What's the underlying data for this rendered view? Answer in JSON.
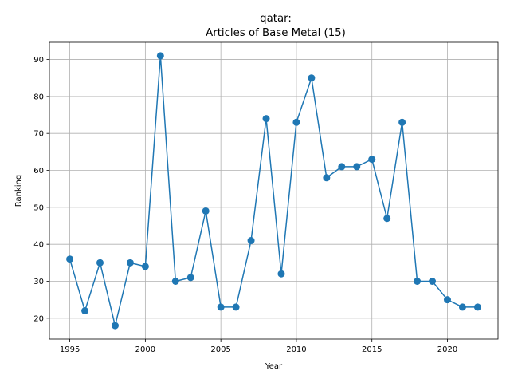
{
  "chart_data": {
    "type": "line",
    "title_line1": "qatar:",
    "title_line2": "Articles of Base Metal (15)",
    "xlabel": "Year",
    "ylabel": "Ranking",
    "xlim": [
      1993.65,
      2023.35
    ],
    "ylim": [
      14.35,
      94.65
    ],
    "xticks": [
      1995,
      2000,
      2005,
      2010,
      2015,
      2020
    ],
    "yticks": [
      20,
      30,
      40,
      50,
      60,
      70,
      80,
      90
    ],
    "grid": true,
    "color": "#1f77b4",
    "series": [
      {
        "x": [
          1995,
          1996,
          1997,
          1998,
          1999,
          2000,
          2001,
          2002,
          2003,
          2004,
          2005,
          2006,
          2007,
          2008,
          2009,
          2010,
          2011,
          2012,
          2013,
          2014,
          2015,
          2016,
          2017,
          2018,
          2019,
          2020,
          2021,
          2022
        ],
        "y": [
          36,
          22,
          35,
          18,
          35,
          34,
          91,
          30,
          31,
          49,
          23,
          23,
          41,
          74,
          32,
          73,
          85,
          58,
          61,
          61,
          63,
          47,
          73,
          30,
          30,
          25,
          23,
          23
        ]
      }
    ]
  }
}
